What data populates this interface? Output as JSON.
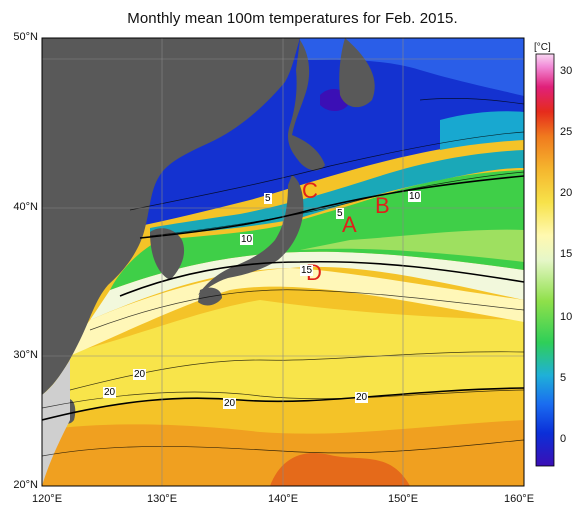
{
  "title": "Monthly mean 100m temperatures for Feb. 2015.",
  "lat_labels": [
    "50°N",
    "40°N",
    "30°N",
    "20°N"
  ],
  "lon_labels": [
    "120°E",
    "130°E",
    "140°E",
    "150°E",
    "160°E"
  ],
  "colorbar": {
    "unit": "[°C]",
    "ticks": [
      "30",
      "25",
      "20",
      "15",
      "10",
      "5",
      "0"
    ],
    "range": [
      -2,
      32
    ],
    "colors": [
      "#3b0fb5",
      "#0b2fd8",
      "#1a6cf0",
      "#1fb0d8",
      "#2fcf58",
      "#8fe04a",
      "#e6f7c8",
      "#fff9b0",
      "#f7e24a",
      "#f5b62e",
      "#f07a1e",
      "#e52b1c",
      "#e0207a",
      "#f28cd8",
      "#f9d7f2"
    ]
  },
  "markers": [
    {
      "id": "A",
      "label": "A"
    },
    {
      "id": "B",
      "label": "B"
    },
    {
      "id": "C",
      "label": "C"
    },
    {
      "id": "D",
      "label": "D"
    }
  ],
  "contour_labels": [
    "5",
    "5",
    "10",
    "10",
    "15",
    "20",
    "20",
    "20",
    "20"
  ],
  "map": {
    "land_color": "#595959",
    "grid": true,
    "extent": {
      "lon": [
        120,
        160
      ],
      "lat": [
        20,
        50
      ]
    }
  }
}
